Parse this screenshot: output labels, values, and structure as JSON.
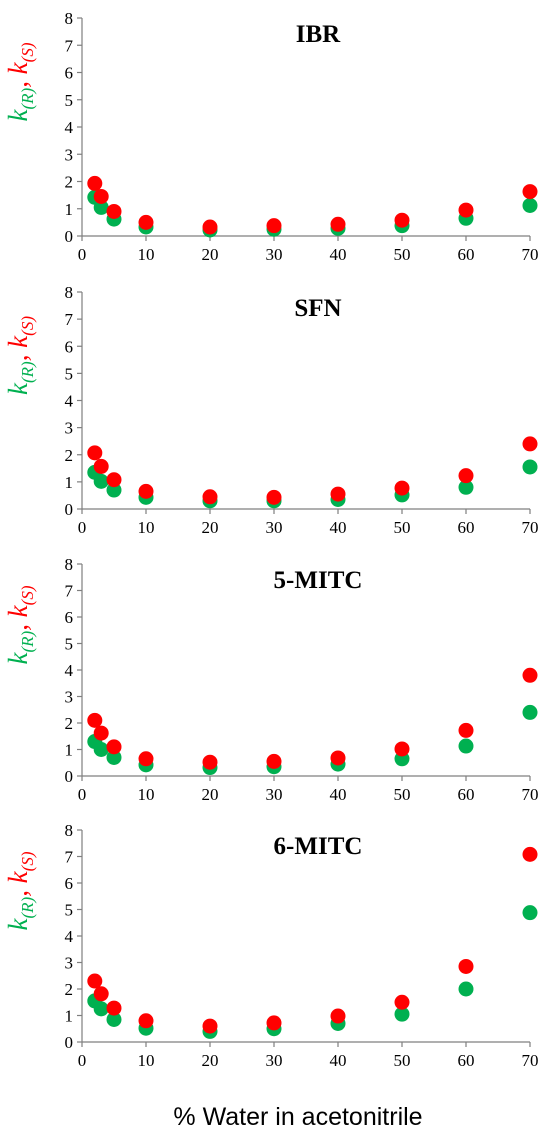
{
  "chart_data": [
    {
      "type": "scatter",
      "title": "IBR",
      "x": [
        2,
        3,
        5,
        10,
        20,
        30,
        40,
        50,
        60,
        70
      ],
      "series": [
        {
          "color": "#00b050",
          "values": [
            1.42,
            1.05,
            0.62,
            0.33,
            0.22,
            0.25,
            0.28,
            0.38,
            0.65,
            1.12
          ]
        },
        {
          "color": "#ff0000",
          "values": [
            1.93,
            1.45,
            0.9,
            0.5,
            0.33,
            0.38,
            0.43,
            0.58,
            0.95,
            1.63
          ]
        }
      ],
      "xlim": [
        0,
        70
      ],
      "ylim": [
        0,
        8
      ],
      "xticks": [
        "0",
        "10",
        "20",
        "30",
        "40",
        "50",
        "60",
        "70"
      ],
      "yticks": [
        "0",
        "1",
        "2",
        "3",
        "4",
        "5",
        "6",
        "7",
        "8"
      ]
    },
    {
      "type": "scatter",
      "title": "SFN",
      "x": [
        2,
        3,
        5,
        10,
        20,
        30,
        40,
        50,
        60,
        70
      ],
      "series": [
        {
          "color": "#00b050",
          "values": [
            1.35,
            1.02,
            0.7,
            0.43,
            0.3,
            0.3,
            0.35,
            0.52,
            0.8,
            1.55
          ]
        },
        {
          "color": "#ff0000",
          "values": [
            2.07,
            1.57,
            1.08,
            0.65,
            0.45,
            0.43,
            0.55,
            0.77,
            1.23,
            2.4
          ]
        }
      ],
      "xlim": [
        0,
        70
      ],
      "ylim": [
        0,
        8
      ],
      "xticks": [
        "0",
        "10",
        "20",
        "30",
        "40",
        "50",
        "60",
        "70"
      ],
      "yticks": [
        "0",
        "1",
        "2",
        "3",
        "4",
        "5",
        "6",
        "7",
        "8"
      ]
    },
    {
      "type": "scatter",
      "title": "5-MITC",
      "x": [
        2,
        3,
        5,
        10,
        20,
        30,
        40,
        50,
        60,
        70
      ],
      "series": [
        {
          "color": "#00b050",
          "values": [
            1.3,
            1.0,
            0.7,
            0.42,
            0.32,
            0.35,
            0.45,
            0.65,
            1.13,
            2.4
          ]
        },
        {
          "color": "#ff0000",
          "values": [
            2.1,
            1.62,
            1.1,
            0.65,
            0.52,
            0.55,
            0.68,
            1.02,
            1.72,
            3.8
          ]
        }
      ],
      "xlim": [
        0,
        70
      ],
      "ylim": [
        0,
        8
      ],
      "xticks": [
        "0",
        "10",
        "20",
        "30",
        "40",
        "50",
        "60",
        "70"
      ],
      "yticks": [
        "0",
        "1",
        "2",
        "3",
        "4",
        "5",
        "6",
        "7",
        "8"
      ]
    },
    {
      "type": "scatter",
      "title": "6-MITC",
      "x": [
        2,
        3,
        5,
        10,
        20,
        30,
        40,
        50,
        60,
        70
      ],
      "series": [
        {
          "color": "#00b050",
          "values": [
            1.55,
            1.25,
            0.85,
            0.52,
            0.4,
            0.5,
            0.7,
            1.05,
            2.0,
            4.88
          ]
        },
        {
          "color": "#ff0000",
          "values": [
            2.3,
            1.82,
            1.28,
            0.8,
            0.6,
            0.72,
            0.98,
            1.5,
            2.85,
            7.08
          ]
        }
      ],
      "xlim": [
        0,
        70
      ],
      "ylim": [
        0,
        8
      ],
      "xticks": [
        "0",
        "10",
        "20",
        "30",
        "40",
        "50",
        "60",
        "70"
      ],
      "yticks": [
        "0",
        "1",
        "2",
        "3",
        "4",
        "5",
        "6",
        "7",
        "8"
      ]
    }
  ],
  "y_label": {
    "green_symbol": "k",
    "green_sub": "(R)",
    "separator": ", ",
    "red_symbol": "k",
    "red_sub": "(S)",
    "green_color": "#00b050",
    "red_color": "#ff0000"
  },
  "x_label": "% Water in acetonitrile"
}
